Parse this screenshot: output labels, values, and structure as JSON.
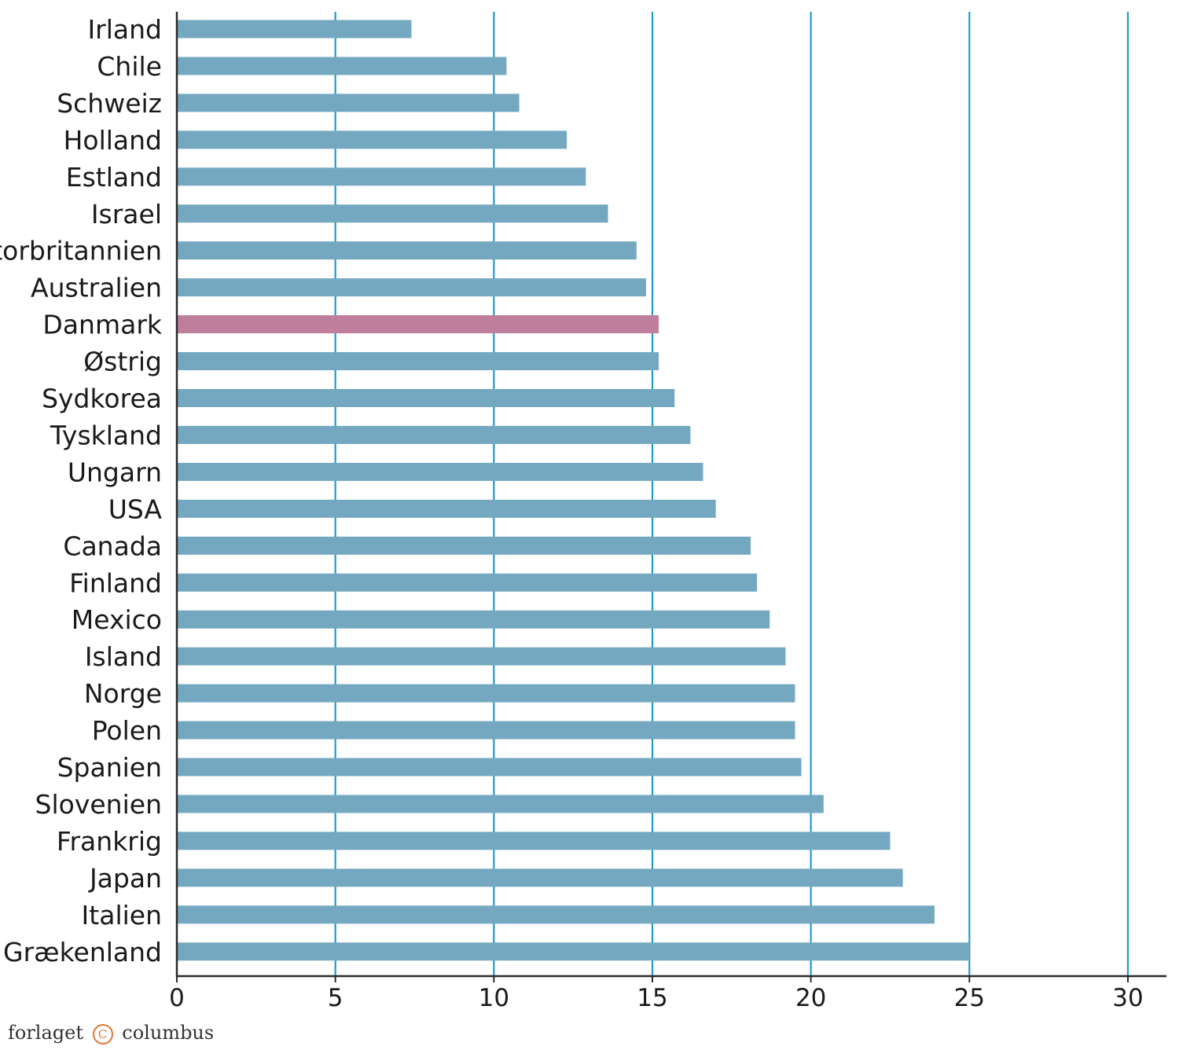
{
  "chart_data": {
    "type": "bar",
    "orientation": "horizontal",
    "categories": [
      "Irland",
      "Chile",
      "Schweiz",
      "Holland",
      "Estland",
      "Israel",
      "Storbritannien",
      "Australien",
      "Danmark",
      "Østrig",
      "Sydkorea",
      "Tyskland",
      "Ungarn",
      "USA",
      "Canada",
      "Finland",
      "Mexico",
      "Island",
      "Norge",
      "Polen",
      "Spanien",
      "Slovenien",
      "Frankrig",
      "Japan",
      "Italien",
      "Grækenland"
    ],
    "values": [
      7.4,
      10.4,
      10.8,
      12.3,
      12.9,
      13.6,
      14.5,
      14.8,
      15.2,
      15.2,
      15.7,
      16.2,
      16.6,
      17.0,
      18.1,
      18.3,
      18.7,
      19.2,
      19.5,
      19.5,
      19.7,
      20.4,
      22.5,
      22.9,
      23.9,
      25.0
    ],
    "highlight": "Danmark",
    "xlim": [
      0,
      30
    ],
    "xticks": [
      0,
      5,
      10,
      15,
      20,
      25,
      30
    ],
    "title": "",
    "xlabel": "",
    "ylabel": "",
    "grid": "vertical",
    "legend": "none"
  },
  "colors": {
    "bar": "#74a8c1",
    "highlight": "#c07e9d",
    "gridline": "#1f9ac9",
    "axis": "#2a2a2a"
  },
  "footer": {
    "publisher_left": "forlaget",
    "publisher_mark": "C",
    "publisher_right": "columbus"
  }
}
